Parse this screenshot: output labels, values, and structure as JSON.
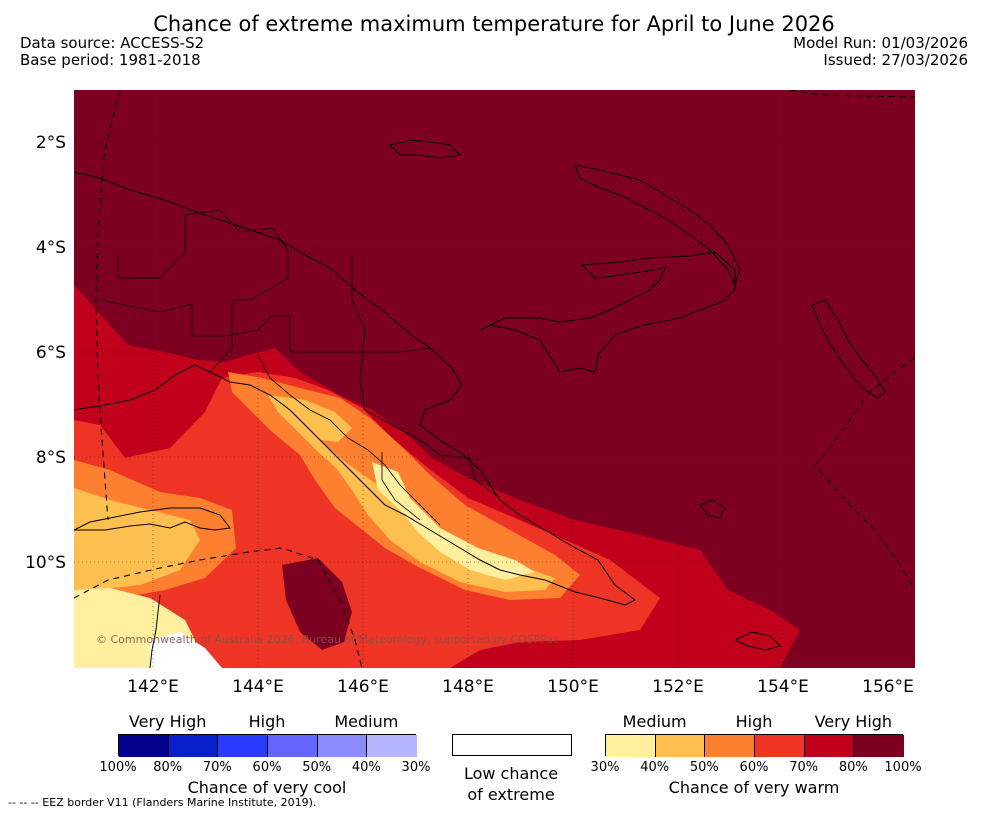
{
  "title": "Chance of extreme maximum temperature for April to June 2026",
  "data_source": "Data source: ACCESS-S2",
  "base_period": "Base period: 1981-2018",
  "model_run": "Model Run: 01/03/2026",
  "issued": "Issued: 27/03/2026",
  "lat_labels": [
    "2°S",
    "4°S",
    "6°S",
    "8°S",
    "10°S"
  ],
  "lat_values": [
    -2,
    -4,
    -6,
    -8,
    -10
  ],
  "lon_labels": [
    "142°E",
    "144°E",
    "146°E",
    "148°E",
    "150°E",
    "152°E",
    "154°E",
    "156°E"
  ],
  "lon_values": [
    142,
    144,
    146,
    148,
    150,
    152,
    154,
    156
  ],
  "copyright": "© Commonwealth of Australia 2026, Bureau of Meteorology, supported by COSPPac",
  "eez_note": "--  --  -- EEZ border V11 (Flanders Marine Institute, 2019).",
  "legend": {
    "cool": {
      "categories": [
        "Very High",
        "High",
        "Medium"
      ],
      "ticks": [
        "100%",
        "80%",
        "70%",
        "60%",
        "50%",
        "40%",
        "30%"
      ],
      "colors": [
        "#00008b",
        "#0a1fcc",
        "#2a3bff",
        "#6464ff",
        "#8c8cff",
        "#b4b4ff"
      ],
      "label": "Chance of very cool"
    },
    "low": {
      "label_line1": "Low chance",
      "label_line2": "of extreme",
      "color": "#ffffff"
    },
    "warm": {
      "categories": [
        "Medium",
        "High",
        "Very High"
      ],
      "ticks": [
        "30%",
        "40%",
        "50%",
        "60%",
        "70%",
        "80%",
        "100%"
      ],
      "colors": [
        "#ffef9e",
        "#fdbf4f",
        "#fd8030",
        "#ee3525",
        "#c1001c",
        "#7e0020"
      ],
      "label": "Chance of very warm"
    }
  }
}
